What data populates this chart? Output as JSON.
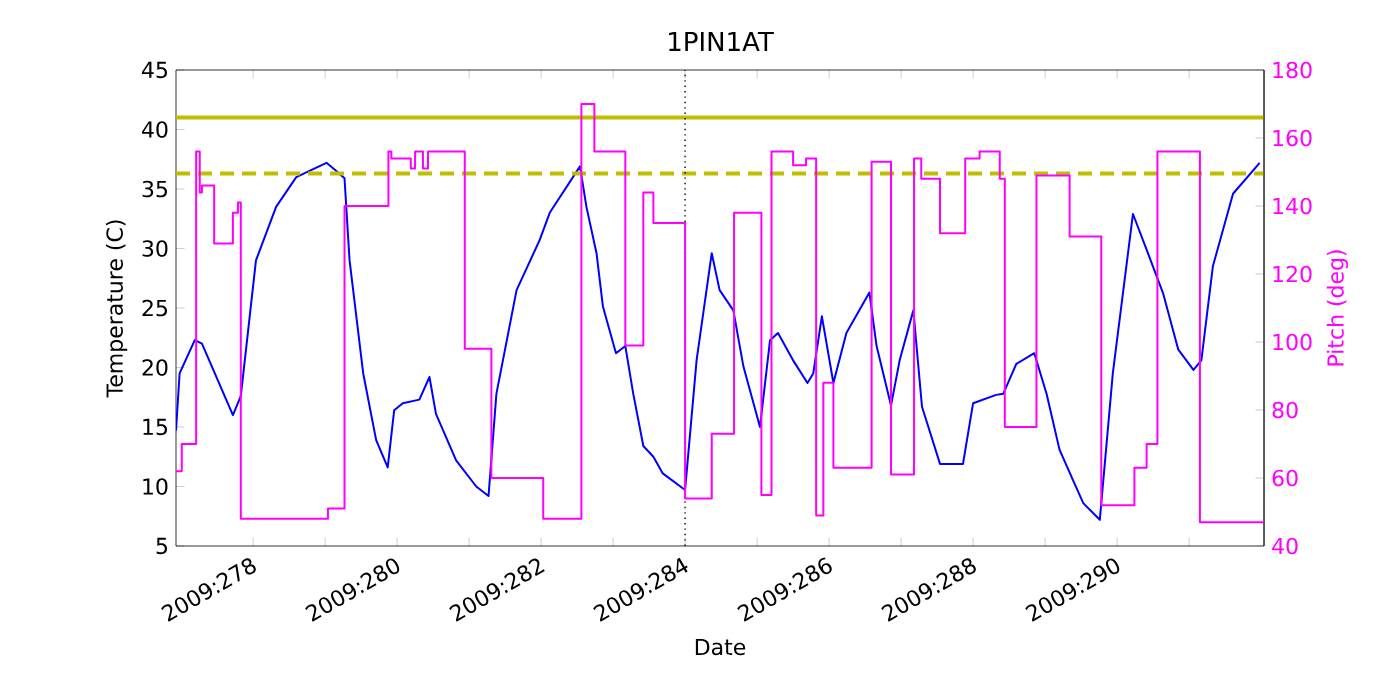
{
  "chart_data": {
    "type": "line",
    "title": "1PIN1AT",
    "xlabel": "Date",
    "ylabel": "Temperature (C)",
    "y2label": "Pitch (deg)",
    "xlim": [
      "2009-10-03T22:19",
      "2009-10-19T00:58"
    ],
    "xticks": [
      {
        "value": "2009-10-05",
        "label": "2009:278"
      },
      {
        "value": "2009-10-06",
        "label": null
      },
      {
        "value": "2009-10-07",
        "label": "2009:280"
      },
      {
        "value": "2009-10-08",
        "label": null
      },
      {
        "value": "2009-10-09",
        "label": "2009:282"
      },
      {
        "value": "2009-10-10",
        "label": null
      },
      {
        "value": "2009-10-11",
        "label": "2009:284"
      },
      {
        "value": "2009-10-12",
        "label": null
      },
      {
        "value": "2009-10-13",
        "label": "2009:286"
      },
      {
        "value": "2009-10-14",
        "label": null
      },
      {
        "value": "2009-10-15",
        "label": "2009:288"
      },
      {
        "value": "2009-10-16",
        "label": null
      },
      {
        "value": "2009-10-17",
        "label": "2009:290"
      },
      {
        "value": "2009-10-18",
        "label": null
      }
    ],
    "ylim": [
      5,
      45
    ],
    "yticks": [
      5,
      10,
      15,
      20,
      25,
      30,
      35,
      40,
      45
    ],
    "y2lim": [
      40,
      180
    ],
    "y2ticks": [
      40,
      60,
      80,
      100,
      120,
      140,
      160,
      180
    ],
    "series": [
      {
        "color": "#0000ff",
        "x": [
          "2009-10-03T22:19",
          "2009-10-03T23:31",
          "2009-10-04T04:34",
          "2009-10-04T06:58",
          "2009-10-04T17:17",
          "2009-10-04T19:55",
          "2009-10-05T00:58",
          "2009-10-05T07:41",
          "2009-10-05T14:24",
          "2009-10-06T00:29",
          "2009-10-06T03:22",
          "2009-10-06T06:29",
          "2009-10-06T08:10",
          "2009-10-06T12:43",
          "2009-10-06T17:02",
          "2009-10-06T20:53",
          "2009-10-06T23:02",
          "2009-10-07T01:55",
          "2009-10-07T07:26",
          "2009-10-07T10:48",
          "2009-10-07T12:58",
          "2009-10-07T19:41",
          "2009-10-08T02:24",
          "2009-10-08T06:29",
          "2009-10-08T09:07",
          "2009-10-08T15:50",
          "2009-10-08T23:31",
          "2009-10-09T02:53",
          "2009-10-09T12:58",
          "2009-10-09T15:07",
          "2009-10-09T18:29",
          "2009-10-09T20:38",
          "2009-10-10T00:58",
          "2009-10-10T04:05",
          "2009-10-10T06:43",
          "2009-10-10T10:05",
          "2009-10-10T13:26",
          "2009-10-10T16:34",
          "2009-10-11T00:00",
          "2009-10-11T03:50",
          "2009-10-11T08:53",
          "2009-10-11T11:31",
          "2009-10-11T16:05",
          "2009-10-11T19:26",
          "2009-10-12T00:58",
          "2009-10-12T04:19",
          "2009-10-12T06:58",
          "2009-10-12T12:00",
          "2009-10-12T16:48",
          "2009-10-12T18:43",
          "2009-10-12T21:36",
          "2009-10-13T01:26",
          "2009-10-13T05:46",
          "2009-10-13T13:26",
          "2009-10-13T15:50",
          "2009-10-13T20:38",
          "2009-10-13T23:31",
          "2009-10-14T04:05",
          "2009-10-14T06:58",
          "2009-10-14T12:58",
          "2009-10-14T20:38",
          "2009-10-15T00:00",
          "2009-10-15T07:41",
          "2009-10-15T10:05",
          "2009-10-15T14:24",
          "2009-10-15T20:24",
          "2009-10-16T00:29",
          "2009-10-16T04:48",
          "2009-10-16T09:22",
          "2009-10-16T12:43",
          "2009-10-16T18:14",
          "2009-10-16T22:34",
          "2009-10-17T05:17",
          "2009-10-17T09:50",
          "2009-10-17T15:22",
          "2009-10-17T20:24",
          "2009-10-18T01:26",
          "2009-10-18T04:05",
          "2009-10-18T07:55",
          "2009-10-18T14:38",
          "2009-10-18T23:31"
        ],
        "values": [
          14.7,
          19.5,
          22.3,
          22.0,
          16.0,
          17.6,
          29.0,
          33.5,
          36.0,
          37.2,
          36.6,
          35.9,
          29.0,
          19.5,
          13.9,
          11.6,
          16.4,
          17.0,
          17.3,
          19.2,
          16.1,
          12.2,
          10.0,
          9.2,
          17.8,
          26.5,
          30.7,
          33.0,
          36.9,
          33.5,
          29.6,
          25.1,
          21.2,
          21.8,
          17.8,
          13.4,
          12.5,
          11.1,
          9.7,
          20.6,
          29.6,
          26.5,
          24.8,
          20.1,
          15.0,
          22.3,
          22.9,
          20.6,
          18.7,
          19.5,
          24.3,
          18.7,
          22.9,
          26.3,
          21.8,
          16.8,
          20.6,
          24.8,
          16.7,
          11.9,
          11.9,
          17.0,
          17.7,
          17.8,
          20.3,
          21.2,
          17.8,
          13.1,
          10.5,
          8.6,
          7.2,
          19.5,
          32.9,
          29.9,
          26.2,
          21.5,
          19.8,
          20.6,
          28.5,
          34.6,
          37.2
        ]
      },
      {
        "color": "#ff00ff",
        "type": "step",
        "axis": "y2",
        "x": [
          "2009-10-03T22:19",
          "2009-10-04T00:14",
          "2009-10-04T05:02",
          "2009-10-04T06:14",
          "2009-10-04T06:58",
          "2009-10-04T11:02",
          "2009-10-04T17:17",
          "2009-10-04T18:58",
          "2009-10-04T19:55",
          "2009-10-06T00:58",
          "2009-10-06T06:29",
          "2009-10-06T21:07",
          "2009-10-06T22:05",
          "2009-10-07T04:34",
          "2009-10-07T06:00",
          "2009-10-07T08:38",
          "2009-10-07T10:19",
          "2009-10-07T22:34",
          "2009-10-08T07:26",
          "2009-10-09T00:43",
          "2009-10-09T13:26",
          "2009-10-09T17:46",
          "2009-10-10T03:22",
          "2009-10-10T04:05",
          "2009-10-10T10:05",
          "2009-10-10T13:26",
          "2009-10-11T00:00",
          "2009-10-11T08:53",
          "2009-10-11T16:19",
          "2009-10-12T01:26",
          "2009-10-12T04:48",
          "2009-10-12T12:00",
          "2009-10-12T16:19",
          "2009-10-12T19:41",
          "2009-10-12T22:05",
          "2009-10-13T01:26",
          "2009-10-13T14:10",
          "2009-10-13T20:38",
          "2009-10-14T04:19",
          "2009-10-14T06:43",
          "2009-10-14T12:58",
          "2009-10-14T21:22",
          "2009-10-15T02:10",
          "2009-10-15T08:53",
          "2009-10-15T10:34",
          "2009-10-15T21:07",
          "2009-10-16T08:10",
          "2009-10-16T18:43",
          "2009-10-17T05:46",
          "2009-10-17T09:50",
          "2009-10-17T13:26",
          "2009-10-18T03:36",
          "2009-10-19T00:58"
        ],
        "values": [
          62,
          70,
          156,
          144,
          146,
          129,
          138,
          141,
          48,
          51,
          140,
          156,
          154,
          151,
          156,
          151,
          156,
          98,
          60,
          48,
          170,
          156,
          156,
          99,
          144,
          135,
          54,
          73,
          138,
          55,
          156,
          152,
          154,
          49,
          88,
          63,
          153,
          61,
          154,
          148,
          132,
          154,
          156,
          148,
          75,
          149,
          131,
          52,
          63,
          70,
          156,
          47,
          47
        ]
      }
    ],
    "ref_lines": [
      {
        "axis": "y",
        "value": 41,
        "color": "#bfbf00",
        "line_style": "solid"
      },
      {
        "axis": "y",
        "value": 36.3,
        "color": "#bfbf00",
        "line_style": "dashed"
      },
      {
        "axis": "x",
        "value": "2009-10-11",
        "color": "#000000",
        "line_style": "dotted"
      }
    ]
  }
}
